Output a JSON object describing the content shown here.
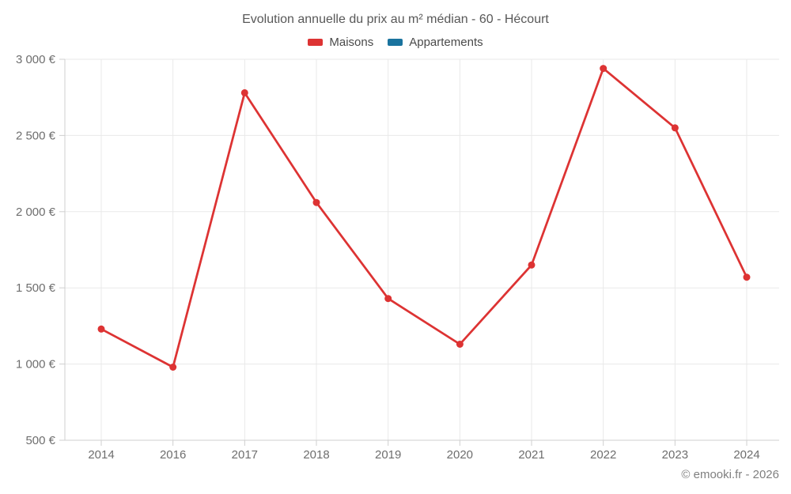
{
  "title": "Evolution annuelle du prix au m² médian - 60 - Hécourt",
  "legend": {
    "items": [
      {
        "label": "Maisons",
        "color": "#dd3333"
      },
      {
        "label": "Appartements",
        "color": "#1a739e"
      }
    ]
  },
  "footer": {
    "credit": "© emooki.fr - 2026"
  },
  "chart_data": {
    "type": "line",
    "title": "Evolution annuelle du prix au m² médian - 60 - Hécourt",
    "categories": [
      "2014",
      "2016",
      "2017",
      "2018",
      "2019",
      "2020",
      "2021",
      "2022",
      "2023",
      "2024"
    ],
    "series": [
      {
        "name": "Maisons",
        "color": "#dd3333",
        "values": [
          1230,
          980,
          2780,
          2060,
          1430,
          1130,
          1650,
          2940,
          2550,
          1570
        ]
      },
      {
        "name": "Appartements",
        "color": "#1a739e",
        "values": []
      }
    ],
    "xlabel": "",
    "ylabel": "",
    "ylim": [
      500,
      3000
    ],
    "yticks": [
      {
        "value": 500,
        "label": "500 €"
      },
      {
        "value": 1000,
        "label": "1 000 €"
      },
      {
        "value": 1500,
        "label": "1 500 €"
      },
      {
        "value": 2000,
        "label": "2 000 €"
      },
      {
        "value": 2500,
        "label": "2 500 €"
      },
      {
        "value": 3000,
        "label": "3 000 €"
      }
    ],
    "grid": true,
    "legend_position": "top"
  }
}
